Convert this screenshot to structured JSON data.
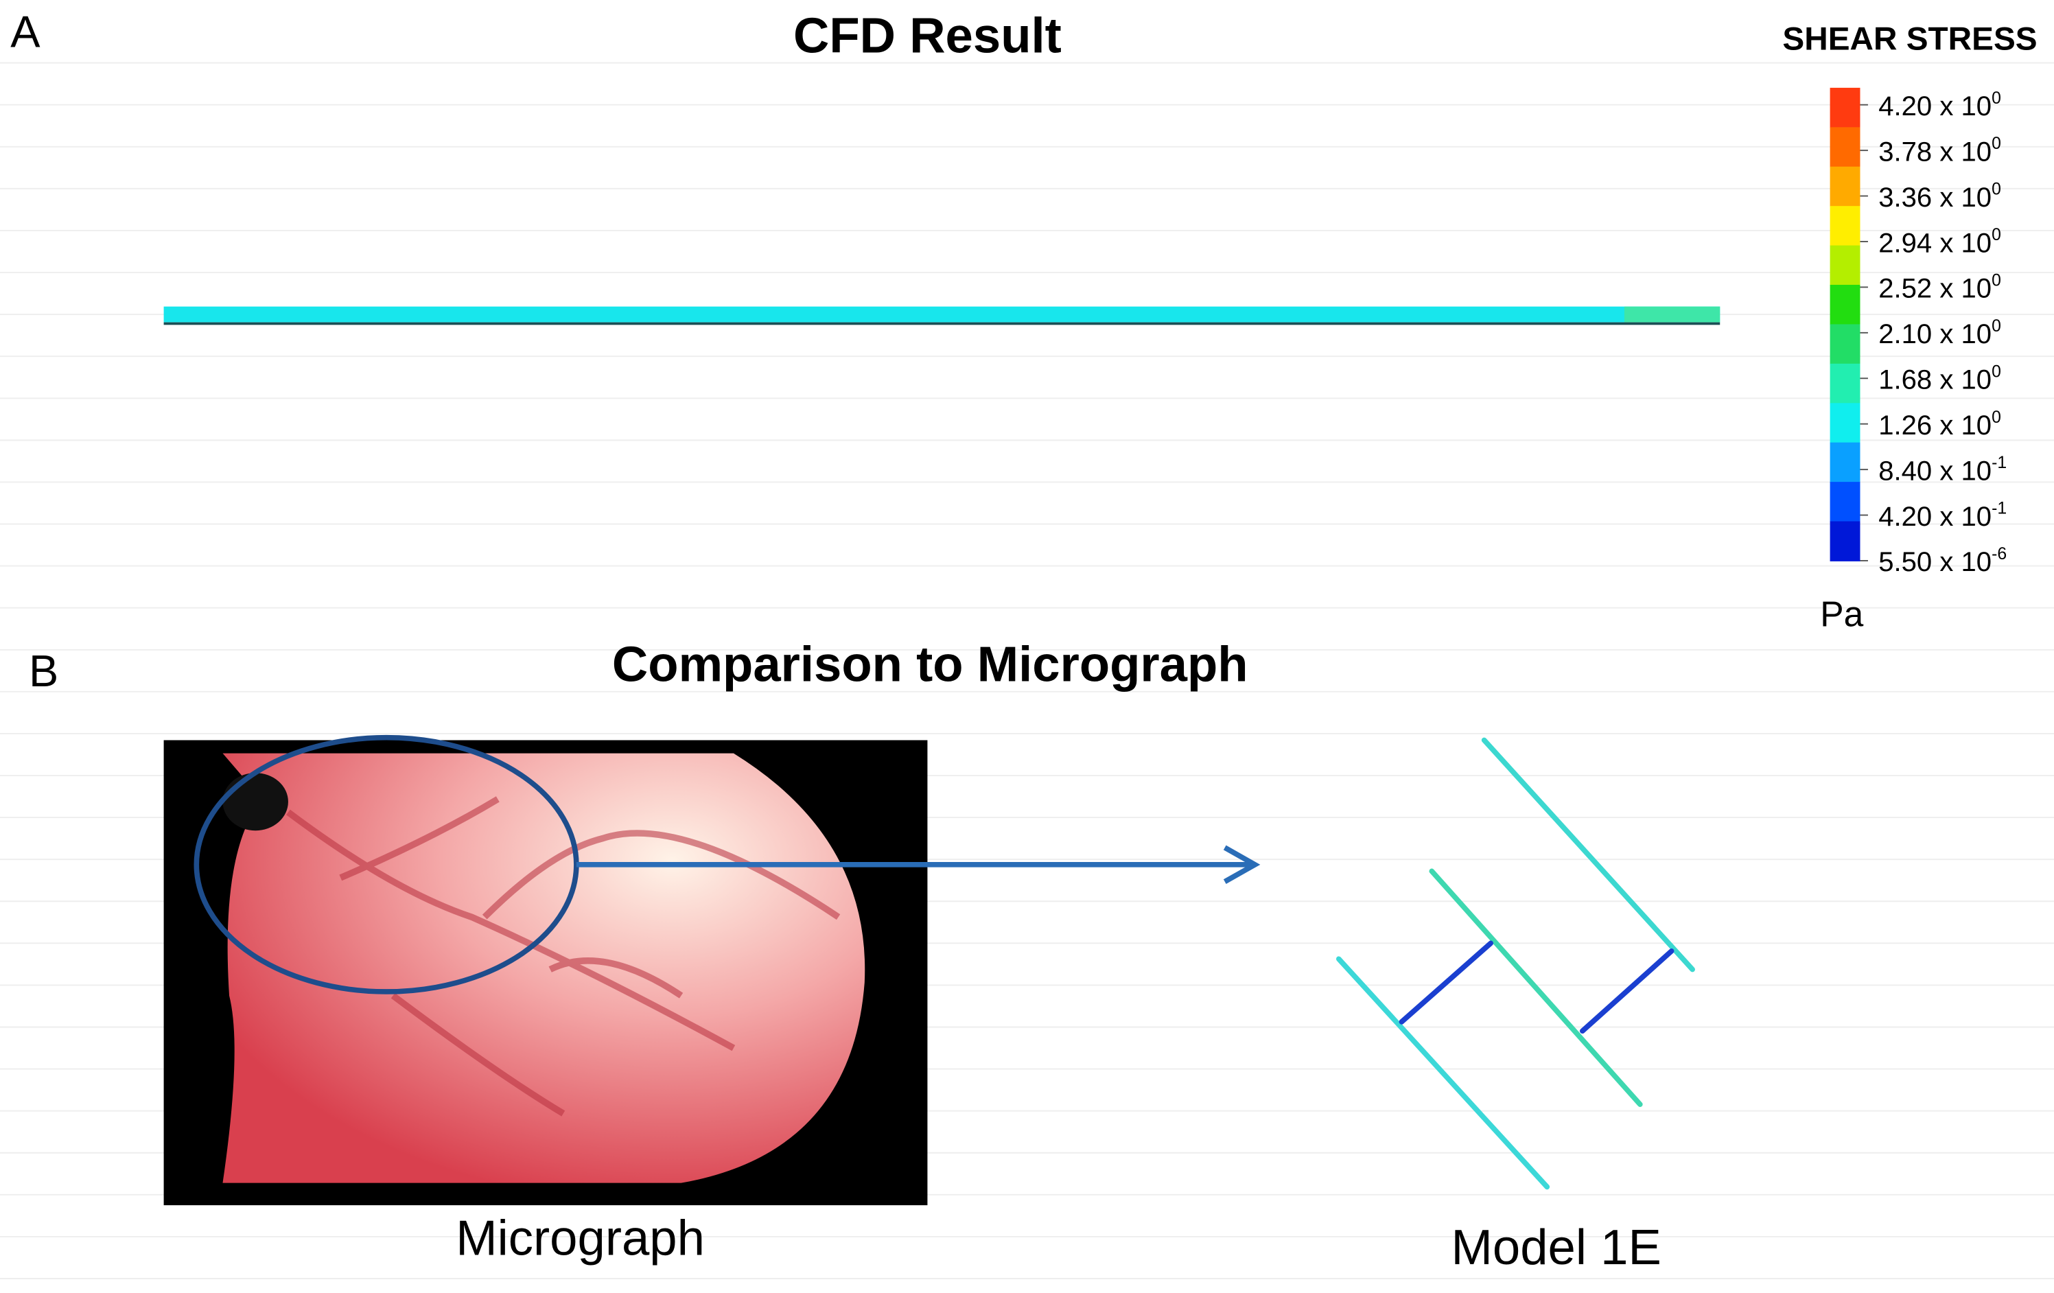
{
  "panel_a": {
    "letter": "A",
    "title": "CFD Result",
    "legend": {
      "title": "SHEAR STRESS",
      "unit": "Pa",
      "labels": [
        {
          "mantissa": "4.20 x 10",
          "exponent": "0"
        },
        {
          "mantissa": "3.78 x 10",
          "exponent": "0"
        },
        {
          "mantissa": "3.36 x 10",
          "exponent": "0"
        },
        {
          "mantissa": "2.94 x 10",
          "exponent": "0"
        },
        {
          "mantissa": "2.52 x 10",
          "exponent": "0"
        },
        {
          "mantissa": "2.10 x 10",
          "exponent": "0"
        },
        {
          "mantissa": "1.68 x 10",
          "exponent": "0"
        },
        {
          "mantissa": "1.26 x 10",
          "exponent": "0"
        },
        {
          "mantissa": "8.40 x 10",
          "exponent": "-1"
        },
        {
          "mantissa": "4.20 x 10",
          "exponent": "-1"
        },
        {
          "mantissa": "5.50 x 10",
          "exponent": "-6"
        }
      ]
    }
  },
  "panel_b": {
    "letter": "B",
    "title": "Comparison to Micrograph",
    "left_caption": "Micrograph",
    "right_caption": "Model 1E"
  }
}
